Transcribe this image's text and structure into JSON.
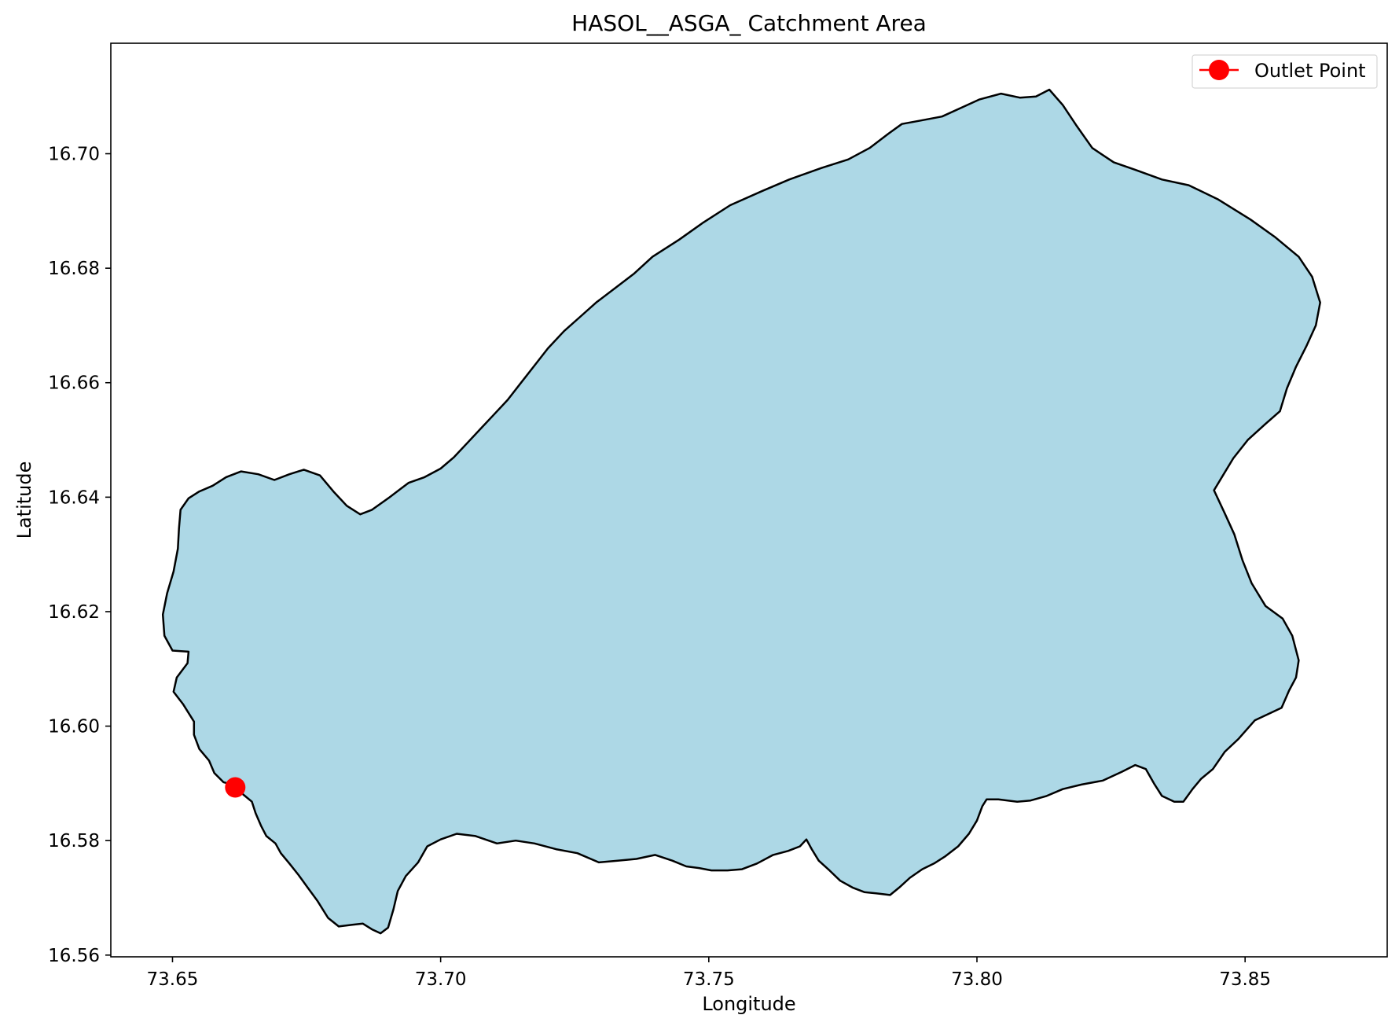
{
  "chart_data": {
    "type": "map",
    "title": "HASOL__ASGA_ Catchment Area",
    "xlabel": "Longitude",
    "ylabel": "Latitude",
    "xlim": [
      73.6385,
      73.8765
    ],
    "ylim": [
      16.5597,
      16.7193
    ],
    "xticks": [
      73.65,
      73.7,
      73.75,
      73.8,
      73.85
    ],
    "xtick_labels": [
      "73.65",
      "73.70",
      "73.75",
      "73.80",
      "73.85"
    ],
    "yticks": [
      16.56,
      16.58,
      16.6,
      16.62,
      16.64,
      16.66,
      16.68,
      16.7
    ],
    "ytick_labels": [
      "16.56",
      "16.58",
      "16.60",
      "16.62",
      "16.64",
      "16.66",
      "16.68",
      "16.70"
    ],
    "grid": false,
    "legend": {
      "position": "upper-right",
      "entries": [
        "Outlet Point"
      ]
    },
    "catchment": {
      "fill": "#add8e6",
      "edge": "#000000",
      "boundary": [
        [
          73.6615,
          16.5897
        ],
        [
          73.663,
          16.5882
        ],
        [
          73.6648,
          16.5868
        ],
        [
          73.6655,
          16.5848
        ],
        [
          73.6665,
          16.5826
        ],
        [
          73.6675,
          16.5808
        ],
        [
          73.6692,
          16.5795
        ],
        [
          73.6702,
          16.5778
        ],
        [
          73.6718,
          16.576
        ],
        [
          73.6735,
          16.574
        ],
        [
          73.6752,
          16.5718
        ],
        [
          73.677,
          16.5695
        ],
        [
          73.679,
          16.5665
        ],
        [
          73.681,
          16.565
        ],
        [
          73.6835,
          16.5653
        ],
        [
          73.6855,
          16.5655
        ],
        [
          73.6872,
          16.5645
        ],
        [
          73.6888,
          16.5638
        ],
        [
          73.6902,
          16.5648
        ],
        [
          73.6912,
          16.568
        ],
        [
          73.692,
          16.5712
        ],
        [
          73.6935,
          16.5738
        ],
        [
          73.6958,
          16.5762
        ],
        [
          73.6975,
          16.579
        ],
        [
          73.7,
          16.5802
        ],
        [
          73.703,
          16.5812
        ],
        [
          73.7065,
          16.5808
        ],
        [
          73.7105,
          16.5795
        ],
        [
          73.714,
          16.58
        ],
        [
          73.7175,
          16.5795
        ],
        [
          73.7215,
          16.5785
        ],
        [
          73.7255,
          16.5778
        ],
        [
          73.7295,
          16.5762
        ],
        [
          73.733,
          16.5765
        ],
        [
          73.7365,
          16.5768
        ],
        [
          73.74,
          16.5775
        ],
        [
          73.7432,
          16.5765
        ],
        [
          73.7458,
          16.5755
        ],
        [
          73.7482,
          16.5752
        ],
        [
          73.7505,
          16.5748
        ],
        [
          73.7535,
          16.5748
        ],
        [
          73.7562,
          16.575
        ],
        [
          73.759,
          16.576
        ],
        [
          73.762,
          16.5775
        ],
        [
          73.7648,
          16.5782
        ],
        [
          73.767,
          16.579
        ],
        [
          73.7682,
          16.5802
        ],
        [
          73.7692,
          16.5785
        ],
        [
          73.7705,
          16.5765
        ],
        [
          73.7725,
          16.5748
        ],
        [
          73.7745,
          16.573
        ],
        [
          73.7768,
          16.5718
        ],
        [
          73.779,
          16.571
        ],
        [
          73.7812,
          16.5708
        ],
        [
          73.7838,
          16.5705
        ],
        [
          73.7855,
          16.5718
        ],
        [
          73.7875,
          16.5735
        ],
        [
          73.7898,
          16.575
        ],
        [
          73.792,
          16.576
        ],
        [
          73.794,
          16.5772
        ],
        [
          73.7965,
          16.579
        ],
        [
          73.7985,
          16.5812
        ],
        [
          73.8,
          16.5835
        ],
        [
          73.801,
          16.586
        ],
        [
          73.8018,
          16.5872
        ],
        [
          73.804,
          16.5872
        ],
        [
          73.8075,
          16.5868
        ],
        [
          73.81,
          16.587
        ],
        [
          73.813,
          16.5878
        ],
        [
          73.816,
          16.589
        ],
        [
          73.8195,
          16.5898
        ],
        [
          73.8235,
          16.5905
        ],
        [
          73.827,
          16.592
        ],
        [
          73.8295,
          16.5932
        ],
        [
          73.8315,
          16.5925
        ],
        [
          73.833,
          16.59
        ],
        [
          73.8345,
          16.5878
        ],
        [
          73.8368,
          16.5868
        ],
        [
          73.8385,
          16.5868
        ],
        [
          73.8402,
          16.589
        ],
        [
          73.8418,
          16.5908
        ],
        [
          73.844,
          16.5925
        ],
        [
          73.8462,
          16.5955
        ],
        [
          73.8488,
          16.5978
        ],
        [
          73.8518,
          16.601
        ],
        [
          73.8545,
          16.6022
        ],
        [
          73.8568,
          16.6032
        ],
        [
          73.8582,
          16.6062
        ],
        [
          73.8595,
          16.6085
        ],
        [
          73.86,
          16.6115
        ],
        [
          73.8588,
          16.6158
        ],
        [
          73.857,
          16.6188
        ],
        [
          73.8538,
          16.621
        ],
        [
          73.8512,
          16.625
        ],
        [
          73.8495,
          16.629
        ],
        [
          73.848,
          16.6335
        ],
        [
          73.8462,
          16.6372
        ],
        [
          73.8442,
          16.6412
        ],
        [
          73.846,
          16.644
        ],
        [
          73.8478,
          16.6468
        ],
        [
          73.8505,
          16.65
        ],
        [
          73.8538,
          16.6528
        ],
        [
          73.8565,
          16.655
        ],
        [
          73.8578,
          16.659
        ],
        [
          73.8595,
          16.6628
        ],
        [
          73.8615,
          16.6665
        ],
        [
          73.8632,
          16.67
        ],
        [
          73.864,
          16.674
        ],
        [
          73.8625,
          16.6785
        ],
        [
          73.86,
          16.682
        ],
        [
          73.8555,
          16.6855
        ],
        [
          73.851,
          16.6885
        ],
        [
          73.845,
          16.692
        ],
        [
          73.8395,
          16.6945
        ],
        [
          73.8345,
          16.6955
        ],
        [
          73.8295,
          16.6972
        ],
        [
          73.8255,
          16.6985
        ],
        [
          73.8215,
          16.701
        ],
        [
          73.8185,
          16.705
        ],
        [
          73.816,
          16.7085
        ],
        [
          73.8135,
          16.7112
        ],
        [
          73.811,
          16.71
        ],
        [
          73.808,
          16.7098
        ],
        [
          73.8045,
          16.7105
        ],
        [
          73.8005,
          16.7095
        ],
        [
          73.7975,
          16.7082
        ],
        [
          73.7935,
          16.7065
        ],
        [
          73.7895,
          16.7058
        ],
        [
          73.786,
          16.7052
        ],
        [
          73.7835,
          16.7035
        ],
        [
          73.78,
          16.701
        ],
        [
          73.776,
          16.699
        ],
        [
          73.771,
          16.6975
        ],
        [
          73.765,
          16.6955
        ],
        [
          73.76,
          16.6935
        ],
        [
          73.754,
          16.691
        ],
        [
          73.749,
          16.688
        ],
        [
          73.7445,
          16.685
        ],
        [
          73.7395,
          16.682
        ],
        [
          73.736,
          16.679
        ],
        [
          73.7325,
          16.6765
        ],
        [
          73.729,
          16.674
        ],
        [
          73.726,
          16.6715
        ],
        [
          73.723,
          16.669
        ],
        [
          73.72,
          16.666
        ],
        [
          73.7175,
          16.663
        ],
        [
          73.715,
          16.66
        ],
        [
          73.7125,
          16.657
        ],
        [
          73.71,
          16.6545
        ],
        [
          73.7075,
          16.652
        ],
        [
          73.705,
          16.6495
        ],
        [
          73.7025,
          16.647
        ],
        [
          73.7,
          16.645
        ],
        [
          73.697,
          16.6435
        ],
        [
          73.694,
          16.6425
        ],
        [
          73.6905,
          16.64
        ],
        [
          73.6872,
          16.6378
        ],
        [
          73.685,
          16.637
        ],
        [
          73.6825,
          16.6385
        ],
        [
          73.68,
          16.641
        ],
        [
          73.6775,
          16.6438
        ],
        [
          73.6745,
          16.6448
        ],
        [
          73.6718,
          16.644
        ],
        [
          73.669,
          16.643
        ],
        [
          73.666,
          16.644
        ],
        [
          73.6628,
          16.6445
        ],
        [
          73.66,
          16.6435
        ],
        [
          73.6575,
          16.642
        ],
        [
          73.655,
          16.641
        ],
        [
          73.653,
          16.6398
        ],
        [
          73.6515,
          16.6378
        ],
        [
          73.6512,
          16.6345
        ],
        [
          73.651,
          16.631
        ],
        [
          73.6502,
          16.627
        ],
        [
          73.649,
          16.6232
        ],
        [
          73.6482,
          16.6195
        ],
        [
          73.6485,
          16.6158
        ],
        [
          73.65,
          16.6132
        ],
        [
          73.653,
          16.613
        ],
        [
          73.6528,
          16.611
        ],
        [
          73.6508,
          16.6085
        ],
        [
          73.6502,
          16.606
        ],
        [
          73.652,
          16.6038
        ],
        [
          73.654,
          16.6008
        ],
        [
          73.654,
          16.5985
        ],
        [
          73.655,
          16.596
        ],
        [
          73.6568,
          16.594
        ],
        [
          73.6578,
          16.5918
        ],
        [
          73.6595,
          16.5902
        ]
      ]
    },
    "outlet_point": {
      "name": "Outlet Point",
      "lon": 73.6617,
      "lat": 16.5893,
      "color": "#ff0000"
    }
  }
}
